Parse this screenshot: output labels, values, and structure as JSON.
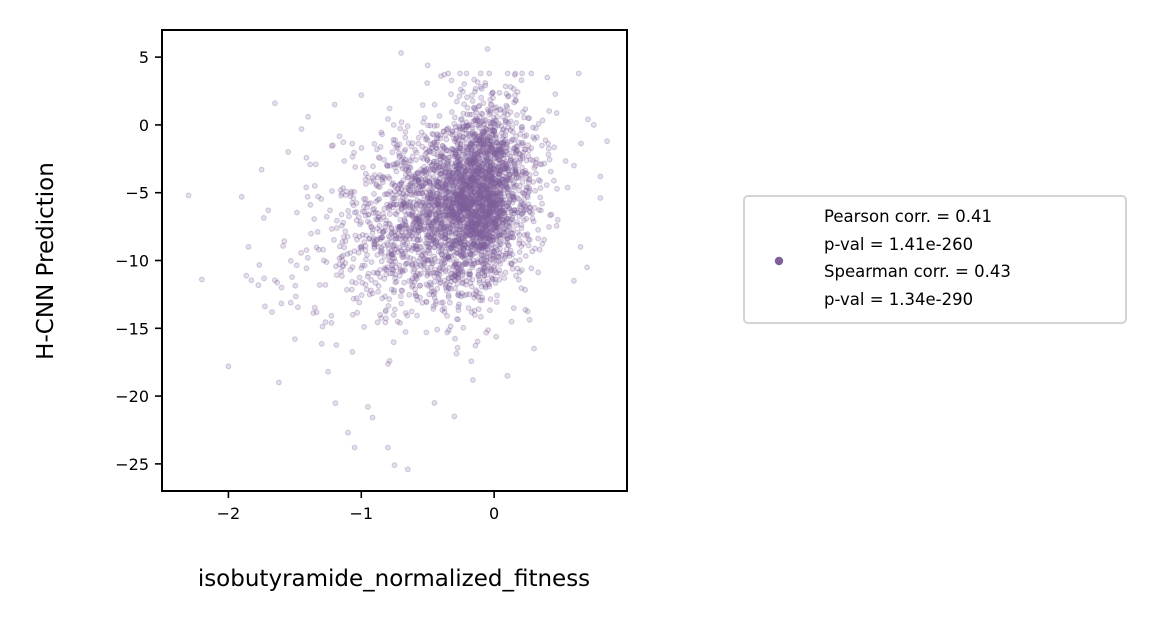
{
  "chart_data": {
    "type": "scatter",
    "title": "",
    "xlabel": "isobutyramide_normalized_fitness",
    "ylabel": "H-CNN Prediction",
    "xlim": [
      -2.5,
      1.0
    ],
    "ylim": [
      -27,
      7
    ],
    "xticks": [
      -2,
      -1,
      0
    ],
    "xtick_labels": [
      "−2",
      "−1",
      "0"
    ],
    "yticks": [
      5,
      0,
      -5,
      -10,
      -15,
      -20,
      -25
    ],
    "ytick_labels": [
      "5",
      "0",
      "−5",
      "−10",
      "−15",
      "−20",
      "−25"
    ],
    "grid": false,
    "marker_color": "#7f5f9a",
    "marker_alpha": 0.2,
    "legend": {
      "placement": "right, outside plot",
      "lines": [
        "Pearson corr. = 0.41",
        "p-val = 1.41e-260",
        "Spearman corr. = 0.43",
        "p-val = 1.34e-290"
      ]
    },
    "series": [
      {
        "trend_slope": 3.0,
        "trend_intercept": -5.0,
        "n_points": 3600,
        "points": [
          [
            -2.3,
            -5.2
          ],
          [
            -2.2,
            -11.4
          ],
          [
            -2.0,
            -17.8
          ],
          [
            -1.9,
            -5.3
          ],
          [
            -1.85,
            -9.0
          ],
          [
            -1.75,
            -3.3
          ],
          [
            -1.7,
            -6.3
          ],
          [
            -1.65,
            1.6
          ],
          [
            -1.62,
            -19.0
          ],
          [
            -1.55,
            -2.0
          ],
          [
            -1.45,
            -0.3
          ],
          [
            -1.4,
            0.6
          ],
          [
            -1.35,
            -4.5
          ],
          [
            -1.25,
            -18.2
          ],
          [
            -1.2,
            1.5
          ],
          [
            -1.1,
            -22.7
          ],
          [
            -1.05,
            -23.8
          ],
          [
            -1.0,
            2.2
          ],
          [
            -0.8,
            -23.8
          ],
          [
            -0.75,
            -25.1
          ],
          [
            -0.65,
            -25.4
          ],
          [
            -0.7,
            5.3
          ],
          [
            -0.5,
            4.4
          ],
          [
            -0.4,
            3.6
          ],
          [
            -0.05,
            5.6
          ],
          [
            0.4,
            3.5
          ],
          [
            0.6,
            -3.0
          ],
          [
            0.75,
            0.0
          ],
          [
            0.85,
            -1.2
          ],
          [
            0.8,
            -3.8
          ],
          [
            0.65,
            -9.0
          ],
          [
            0.7,
            -10.5
          ],
          [
            0.6,
            -11.5
          ],
          [
            0.3,
            -16.5
          ],
          [
            0.1,
            -18.5
          ],
          [
            -0.3,
            -21.5
          ],
          [
            -0.45,
            -20.5
          ],
          [
            -0.95,
            -20.8
          ],
          [
            -1.5,
            -15.8
          ],
          [
            -1.6,
            -12.0
          ]
        ]
      }
    ]
  }
}
